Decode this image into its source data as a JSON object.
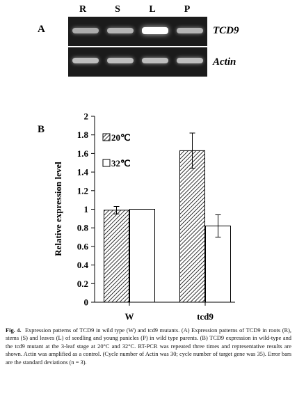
{
  "panel_a": {
    "letter": "A",
    "lanes": [
      "R",
      "S",
      "L",
      "P"
    ],
    "genes": [
      {
        "name": "TCD9",
        "band_intensity": [
          0.55,
          0.6,
          1.0,
          0.6
        ]
      },
      {
        "name": "Actin",
        "band_intensity": [
          0.65,
          0.65,
          0.65,
          0.65
        ]
      }
    ]
  },
  "panel_b": {
    "letter": "B"
  },
  "chart_data": {
    "type": "bar",
    "title": "",
    "ylabel": "Relative expression level",
    "xlabel": "",
    "categories": [
      "W",
      "tcd9"
    ],
    "ylim": [
      0,
      2
    ],
    "yticks": [
      "0",
      "0.2",
      "0.4",
      "0.6",
      "0.8",
      "1",
      "1.2",
      "1.4",
      "1.6",
      "1.8",
      "2"
    ],
    "legend_position": "top-left",
    "series": [
      {
        "name": "20℃",
        "values": [
          0.99,
          1.63
        ],
        "errors": [
          0.04,
          0.19
        ],
        "fill": "hatched"
      },
      {
        "name": "32℃",
        "values": [
          1.0,
          0.82
        ],
        "errors": [
          0.0,
          0.12
        ],
        "fill": "white"
      }
    ]
  },
  "caption": {
    "fig_label": "Fig. 4.",
    "text": "Expression patterns of TCD9 in wild type (W) and tcd9 mutants. (A) Expression patterns of TCD9 in roots (R), stems (S) and leaves (L) of seedling and young panicles (P) in wild type parents. (B) TCD9 expression in wild-type and the tcd9 mutant at the 3-leaf stage at 20°C and 32°C. RT-PCR was repeated three times and representative results are shown. Actin was amplified as a control. (Cycle number of Actin was 30; cycle number of target gene was 35). Error bars are the standard deviations (n = 3)."
  }
}
